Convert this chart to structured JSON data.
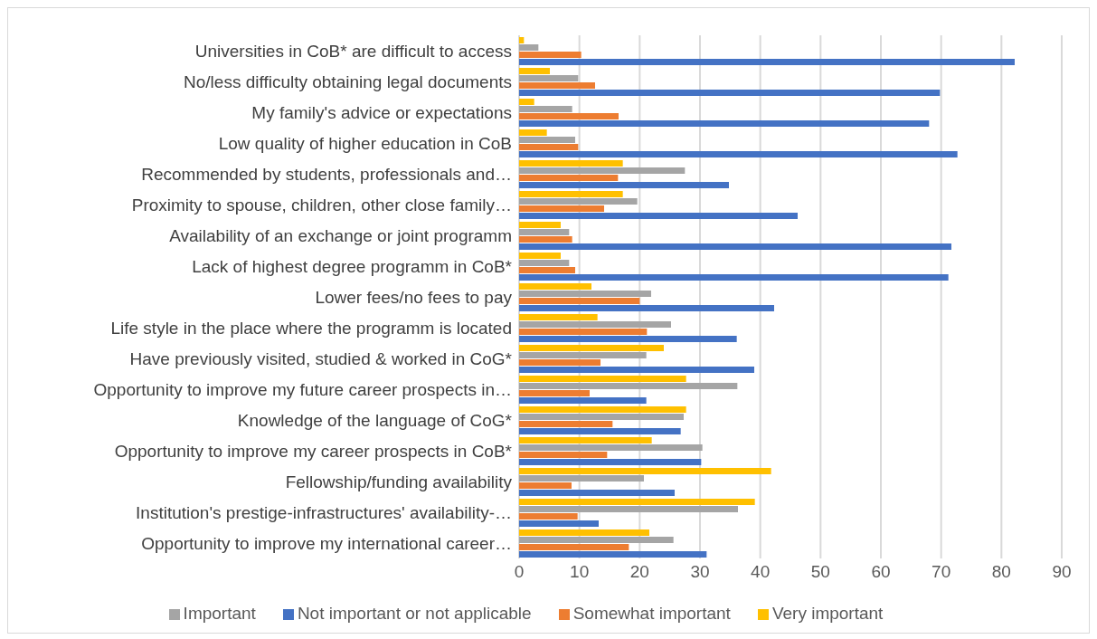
{
  "chart_data": {
    "type": "bar",
    "orientation": "horizontal",
    "categories": [
      "Universities in CoB* are difficult to access",
      "No/less difficulty obtaining legal documents",
      "My family's advice or expectations",
      "Low quality of higher education in CoB",
      "Recommended by students, professionals and…",
      "Proximity to spouse, children, other close family…",
      "Availability of an exchange or joint programm",
      "Lack of highest degree programm in CoB*",
      "Lower fees/no fees to pay ",
      "Life style in the place where the programm is located",
      "Have previously visited, studied & worked in CoG*",
      "Opportunity to improve my future career prospects in…",
      "Knowledge of the language of CoG*",
      "Opportunity to improve my career prospects in CoB*",
      "Fellowship/funding availability ",
      "Institution's prestige-infrastructures' availability-…",
      "Opportunity to improve my international career…"
    ],
    "series": [
      {
        "name": "Very important",
        "color": "#ffc000",
        "values": [
          0.8,
          5.1,
          2.5,
          4.6,
          17.2,
          17.2,
          6.9,
          6.9,
          12.0,
          13.0,
          24.0,
          27.7,
          27.7,
          22.0,
          41.8,
          39.1,
          21.6
        ]
      },
      {
        "name": "Important",
        "color": "#a5a5a5",
        "values": [
          3.2,
          9.8,
          8.8,
          9.3,
          27.5,
          19.6,
          8.3,
          8.3,
          21.9,
          25.2,
          21.1,
          36.2,
          27.3,
          30.4,
          20.7,
          36.3,
          25.6
        ]
      },
      {
        "name": "Somewhat important",
        "color": "#ed7d31",
        "values": [
          10.3,
          12.6,
          16.5,
          9.8,
          16.4,
          14.1,
          8.8,
          9.3,
          20.0,
          21.2,
          13.5,
          11.7,
          15.5,
          14.6,
          8.7,
          9.7,
          18.2
        ]
      },
      {
        "name": "Not important or not applicable",
        "color": "#4472c4",
        "values": [
          82.2,
          69.8,
          68.0,
          72.7,
          34.8,
          46.2,
          71.7,
          71.2,
          42.3,
          36.1,
          39.0,
          21.1,
          26.8,
          30.2,
          25.8,
          13.2,
          31.1
        ]
      }
    ],
    "xlim": [
      0,
      90
    ],
    "xticks": [
      0,
      10,
      20,
      30,
      40,
      50,
      60,
      70,
      80,
      90
    ],
    "grid": "x",
    "legend": "bottom"
  }
}
